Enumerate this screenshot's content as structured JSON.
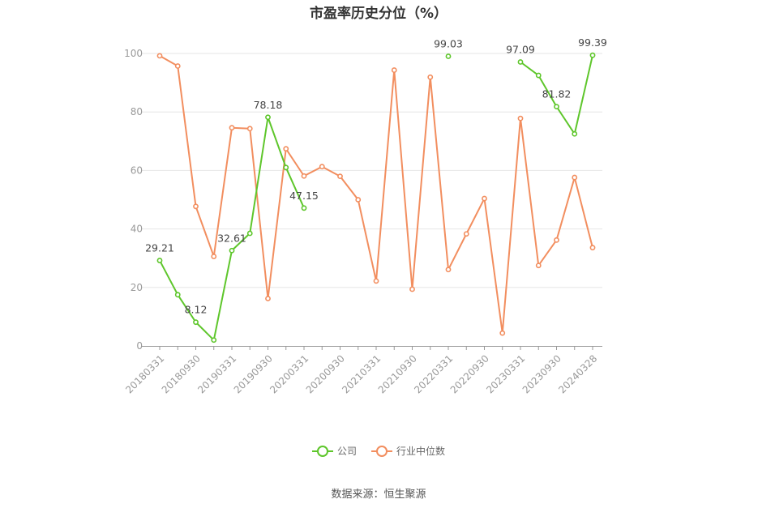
{
  "chart_data": {
    "type": "line",
    "title": "市盈率历史分位（%）",
    "source": "数据来源：恒生聚源",
    "ylim": [
      0,
      100
    ],
    "yticks": [
      0,
      20,
      40,
      60,
      80,
      100
    ],
    "grid": true,
    "legend_position": "bottom",
    "x": [
      "20180331",
      "20180630",
      "20180930",
      "20181231",
      "20190331",
      "20190630",
      "20190930",
      "20191231",
      "20200331",
      "20200630",
      "20200930",
      "20201231",
      "20210331",
      "20210630",
      "20210930",
      "20211231",
      "20220331",
      "20220630",
      "20220930",
      "20221231",
      "20230331",
      "20230630",
      "20230930",
      "20231231",
      "20240328"
    ],
    "x_tick_labels": [
      "20180331",
      "20180930",
      "20190331",
      "20190930",
      "20200331",
      "20200930",
      "20210331",
      "20210930",
      "20220331",
      "20220930",
      "20230331",
      "20230930",
      "20240328"
    ],
    "series": [
      {
        "name": "公司",
        "color": "#5ec62b",
        "values": [
          29.21,
          17.5,
          8.12,
          2.0,
          32.61,
          38.5,
          78.18,
          61.0,
          47.15,
          null,
          null,
          null,
          null,
          null,
          null,
          null,
          99.03,
          null,
          null,
          null,
          97.09,
          92.5,
          81.82,
          72.5,
          99.39
        ],
        "labels": [
          {
            "index": 0,
            "text": "29.21"
          },
          {
            "index": 2,
            "text": "8.12"
          },
          {
            "index": 4,
            "text": "32.61"
          },
          {
            "index": 6,
            "text": "78.18"
          },
          {
            "index": 8,
            "text": "47.15"
          },
          {
            "index": 16,
            "text": "99.03"
          },
          {
            "index": 20,
            "text": "97.09"
          },
          {
            "index": 22,
            "text": "81.82"
          },
          {
            "index": 24,
            "text": "99.39"
          }
        ]
      },
      {
        "name": "行业中位数",
        "color": "#f28e5f",
        "values": [
          99.2,
          95.7,
          47.7,
          30.6,
          74.6,
          74.3,
          16.2,
          67.4,
          58.1,
          61.3,
          58.0,
          50.0,
          22.2,
          94.3,
          19.4,
          91.9,
          26.1,
          38.3,
          50.4,
          4.4,
          77.8,
          27.5,
          36.2,
          57.6,
          33.6
        ]
      }
    ]
  }
}
